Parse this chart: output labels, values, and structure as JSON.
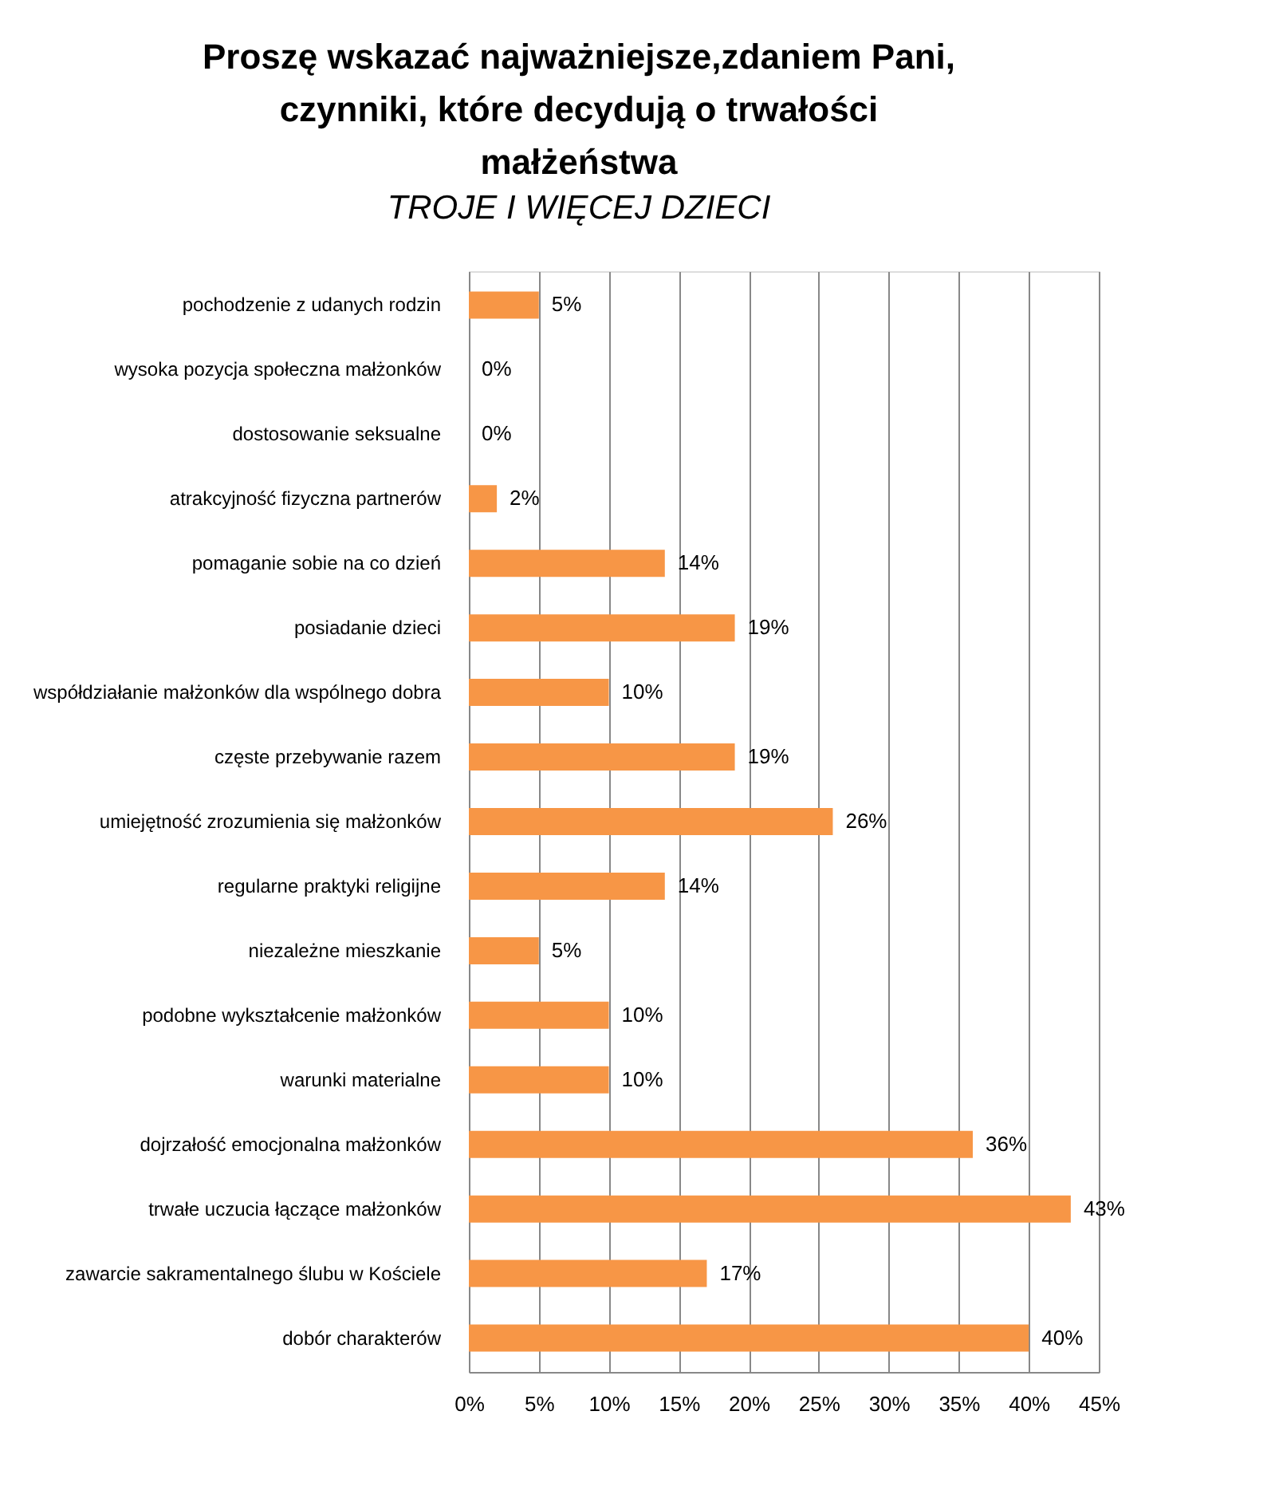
{
  "chart_data": {
    "type": "bar",
    "orientation": "horizontal",
    "title": "Proszę wskazać najważniejsze,zdaniem Pani, czynniki, które decydują o trwałości małżeństwa",
    "subtitle": "TROJE I WIĘCEJ DZIECI",
    "categories": [
      "pochodzenie z udanych rodzin",
      "wysoka pozycja społeczna małżonków",
      "dostosowanie seksualne",
      "atrakcyjność fizyczna partnerów",
      "pomaganie sobie na co dzień",
      "posiadanie dzieci",
      "współdziałanie małżonków dla wspólnego dobra",
      "częste przebywanie razem",
      "umiejętność zrozumienia się małżonków",
      "regularne praktyki religijne",
      "niezależne mieszkanie",
      "podobne wykształcenie małżonków",
      "warunki materialne",
      "dojrzałość emocjonalna małżonków",
      "trwałe uczucia łączące małżonków",
      "zawarcie sakramentalnego ślubu w Kościele",
      "dobór charakterów"
    ],
    "values": [
      5,
      0,
      0,
      2,
      14,
      19,
      10,
      19,
      26,
      14,
      5,
      10,
      10,
      36,
      43,
      17,
      40
    ],
    "value_labels": [
      "5%",
      "0%",
      "0%",
      "2%",
      "14%",
      "19%",
      "10%",
      "19%",
      "26%",
      "14%",
      "5%",
      "10%",
      "10%",
      "36%",
      "43%",
      "17%",
      "40%"
    ],
    "color": "#f79646",
    "xlim": [
      0,
      45
    ],
    "xticks": [
      {
        "value": 0,
        "label": "0%"
      },
      {
        "value": 5,
        "label": "5%"
      },
      {
        "value": 10,
        "label": "10%"
      },
      {
        "value": 15,
        "label": "15%"
      },
      {
        "value": 20,
        "label": "20%"
      },
      {
        "value": 25,
        "label": "25%"
      },
      {
        "value": 30,
        "label": "30%"
      },
      {
        "value": 35,
        "label": "35%"
      },
      {
        "value": 40,
        "label": "40%"
      },
      {
        "value": 45,
        "label": "45%"
      }
    ],
    "grid": "x"
  }
}
